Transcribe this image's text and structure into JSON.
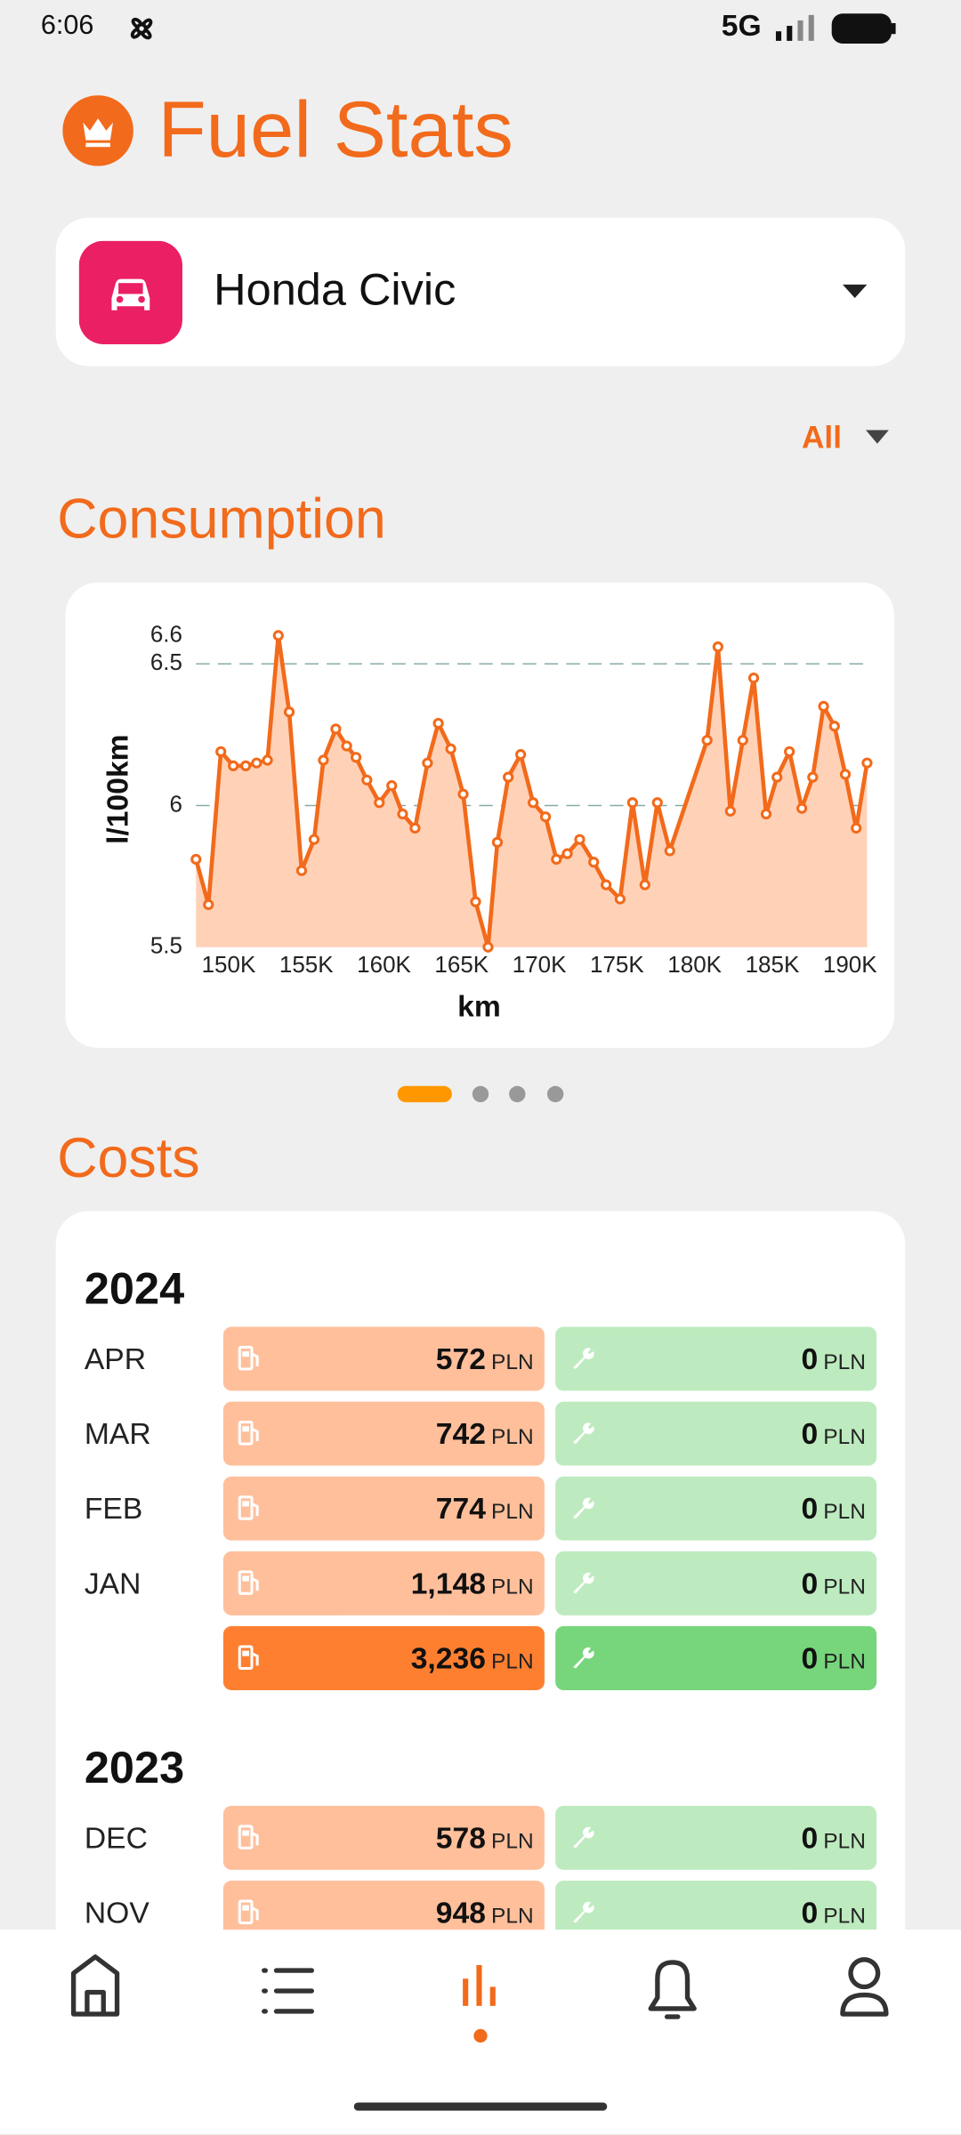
{
  "status_bar": {
    "time": "6:06",
    "network": "5G"
  },
  "header": {
    "title": "Fuel Stats"
  },
  "vehicle_selector": {
    "name": "Honda Civic"
  },
  "filter": {
    "label": "All"
  },
  "sections": {
    "consumption": "Consumption",
    "costs": "Costs"
  },
  "chart_data": {
    "type": "line",
    "x_label": "km",
    "y_label": "l/100km",
    "color": "#f26a1b",
    "area_color": "#ffd2b8",
    "grid": true,
    "x": [
      147900,
      148700,
      149500,
      150300,
      151100,
      151800,
      152500,
      153200,
      153900,
      154700,
      155500,
      156100,
      156900,
      157600,
      158200,
      158900,
      159700,
      160500,
      161200,
      162000,
      162800,
      163500,
      164300,
      165100,
      165900,
      166700,
      167300,
      168000,
      168800,
      169600,
      170400,
      171100,
      171800,
      172600,
      173500,
      174300,
      175200,
      176000,
      176800,
      177600,
      178400,
      180800,
      181500,
      182300,
      183100,
      183800,
      184600,
      185300,
      186100,
      186900,
      187600,
      188300,
      189000,
      189700,
      190400,
      191100
    ],
    "values": [
      5.81,
      5.65,
      6.19,
      6.14,
      6.14,
      6.15,
      6.16,
      6.6,
      6.33,
      5.77,
      5.88,
      6.16,
      6.27,
      6.21,
      6.17,
      6.09,
      6.01,
      6.07,
      5.97,
      5.92,
      6.15,
      6.29,
      6.2,
      6.04,
      5.66,
      5.5,
      5.87,
      6.1,
      6.18,
      6.01,
      5.96,
      5.81,
      5.83,
      5.88,
      5.8,
      5.72,
      5.67,
      6.01,
      5.72,
      6.01,
      5.84,
      6.23,
      6.56,
      5.98,
      6.23,
      6.45,
      5.97,
      6.1,
      6.19,
      5.99,
      6.1,
      6.35,
      6.28,
      6.11,
      5.92,
      6.15
    ],
    "xlim": [
      147900,
      191100
    ],
    "ylim": [
      5.5,
      6.6
    ],
    "xticks": [
      {
        "value": 150000,
        "label": "150K"
      },
      {
        "value": 155000,
        "label": "155K"
      },
      {
        "value": 160000,
        "label": "160K"
      },
      {
        "value": 165000,
        "label": "165K"
      },
      {
        "value": 170000,
        "label": "170K"
      },
      {
        "value": 175000,
        "label": "175K"
      },
      {
        "value": 180000,
        "label": "180K"
      },
      {
        "value": 185000,
        "label": "185K"
      },
      {
        "value": 190000,
        "label": "190K"
      }
    ],
    "yticks": [
      5.5,
      6,
      6.5,
      6.6
    ]
  },
  "costs": {
    "currency": "PLN",
    "years": [
      {
        "year": "2024",
        "months": [
          {
            "month": "APR",
            "fuel": "572",
            "service": "0"
          },
          {
            "month": "MAR",
            "fuel": "742",
            "service": "0"
          },
          {
            "month": "FEB",
            "fuel": "774",
            "service": "0"
          },
          {
            "month": "JAN",
            "fuel": "1,148",
            "service": "0"
          }
        ],
        "total": {
          "fuel": "3,236",
          "service": "0"
        }
      },
      {
        "year": "2023",
        "months": [
          {
            "month": "DEC",
            "fuel": "578",
            "service": "0"
          },
          {
            "month": "NOV",
            "fuel": "948",
            "service": "0"
          }
        ]
      }
    ]
  }
}
